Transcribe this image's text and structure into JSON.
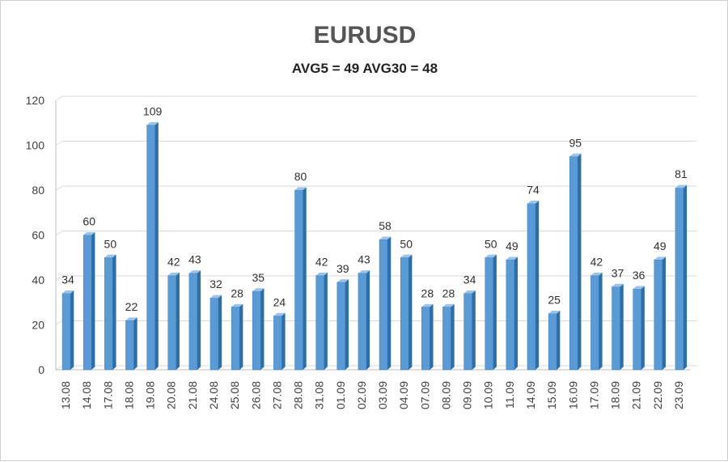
{
  "chart_data": {
    "type": "bar",
    "title": "EURUSD",
    "subtitle": "AVG5 = 49 AVG30 = 48",
    "categories": [
      "13.08",
      "14.08",
      "17.08",
      "18.08",
      "19.08",
      "20.08",
      "21.08",
      "24.08",
      "25.08",
      "26.08",
      "27.08",
      "28.08",
      "31.08",
      "01.09",
      "02.09",
      "03.09",
      "04.09",
      "07.09",
      "08.09",
      "09.09",
      "10.09",
      "11.09",
      "14.09",
      "15.09",
      "16.09",
      "17.09",
      "18.09",
      "21.09",
      "22.09",
      "23.09"
    ],
    "values": [
      34,
      60,
      50,
      22,
      109,
      42,
      43,
      32,
      28,
      35,
      24,
      80,
      42,
      39,
      43,
      58,
      50,
      28,
      28,
      34,
      50,
      49,
      74,
      25,
      95,
      42,
      37,
      36,
      49,
      81
    ],
    "ylim": [
      0,
      120
    ],
    "yticks": [
      0,
      20,
      40,
      60,
      80,
      100,
      120
    ],
    "xlabel": "",
    "ylabel": "",
    "grid": true,
    "legend": "none",
    "colors": {
      "bar_front": "#5b9bd5",
      "bar_side": "#2e6ea6",
      "bar_top": "#9cc3e8",
      "grid": "#d9d9d9"
    }
  }
}
